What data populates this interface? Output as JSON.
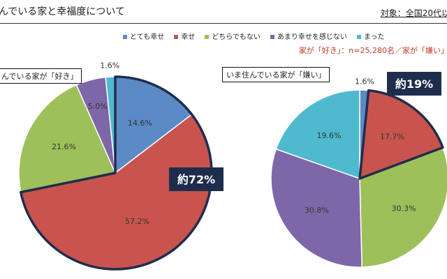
{
  "header": {
    "title": "んでいる家と幸福度について",
    "target": "対象：全国20代以"
  },
  "legend": {
    "items": [
      {
        "label": "とても幸せ",
        "color": "#5b8ac6"
      },
      {
        "label": "幸せ",
        "color": "#c9544d"
      },
      {
        "label": "どちらでもない",
        "color": "#9ec05a"
      },
      {
        "label": "あまり幸せを感じない",
        "color": "#7e67a8"
      },
      {
        "label": "まった",
        "color": "#4fb9cf"
      }
    ]
  },
  "subtitle": "家が「好き」：n=25,280名／家が「嫌い」",
  "chart_data": [
    {
      "type": "pie",
      "title": "んでいる家が「好き」",
      "categories": [
        "とても幸せ",
        "幸せ",
        "どちらでもない",
        "あまり幸せを感じない",
        "まったく幸せを感じない"
      ],
      "values": [
        14.6,
        57.2,
        21.6,
        5.0,
        1.6
      ],
      "data_labels": [
        "14.6%",
        "57.2%",
        "21.6%",
        "5.0%",
        "1.6%"
      ],
      "highlight_label": "約72%"
    },
    {
      "type": "pie",
      "title": "いま住んでいる家が「嫌い」",
      "categories": [
        "とても幸せ",
        "幸せ",
        "どちらでもない",
        "あまり幸せを感じない",
        "まったく幸せを感じない"
      ],
      "values": [
        1.6,
        17.7,
        30.3,
        30.8,
        19.6
      ],
      "data_labels": [
        "1.6%",
        "17.7%",
        "30.3%",
        "30.8%",
        "19.6%"
      ],
      "highlight_label": "約19%"
    }
  ]
}
